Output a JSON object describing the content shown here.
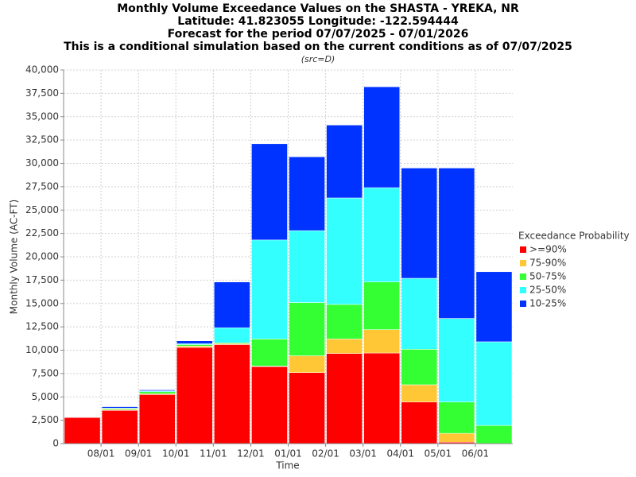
{
  "chart_data": {
    "type": "stacked_bar",
    "title": [
      "Monthly Volume Exceedance Values on the SHASTA - YREKA, NR",
      "Latitude: 41.823055 Longitude: -122.594444",
      "Forecast for the period 07/07/2025 - 07/01/2026",
      "This is a conditional simulation based on the current conditions as of 07/07/2025"
    ],
    "subtitle": "(src=D)",
    "x_label": "Time",
    "y_label": "Monthly Volume (AC-FT)",
    "xticks": [
      "08/01",
      "09/01",
      "10/01",
      "11/01",
      "12/01",
      "01/01",
      "02/01",
      "03/01",
      "04/01",
      "05/01",
      "06/01"
    ],
    "categories": [
      null,
      null,
      null,
      null,
      null,
      null,
      null,
      null,
      null,
      null,
      null,
      null
    ],
    "legend_title": "Exceedance Probability",
    "legend": "right",
    "grid": true,
    "series": [
      {
        "name": ">=90%",
        "color": "#ff0000",
        "values": [
          2800,
          3550,
          5250,
          10300,
          10600,
          8250,
          7600,
          9650,
          9700,
          4450,
          150,
          0
        ]
      },
      {
        "name": "75-90%",
        "color": "#ffc735",
        "values": [
          25,
          100,
          100,
          150,
          100,
          50,
          1800,
          1550,
          2500,
          1850,
          950,
          0
        ]
      },
      {
        "name": "50-75%",
        "color": "#33ff33",
        "values": [
          25,
          100,
          200,
          150,
          100,
          2900,
          5700,
          3700,
          5100,
          3800,
          3350,
          1950
        ]
      },
      {
        "name": "25-50%",
        "color": "#33ffff",
        "values": [
          25,
          50,
          100,
          100,
          1600,
          10600,
          7700,
          11400,
          10100,
          7600,
          8950,
          8950
        ]
      },
      {
        "name": "10-25%",
        "color": "#0033ff",
        "values": [
          25,
          150,
          100,
          300,
          4900,
          10300,
          7900,
          7800,
          10800,
          11800,
          16100,
          7500
        ]
      }
    ],
    "ylim": [
      0,
      40000
    ],
    "yticks": [
      0,
      {
        "value": 2500,
        "label": "2,500"
      },
      {
        "value": 5000,
        "label": "5,000"
      },
      {
        "value": 7500,
        "label": "7,500"
      },
      {
        "value": 10000,
        "label": "10,000"
      },
      {
        "value": 12500,
        "label": "12,500"
      },
      {
        "value": 15000,
        "label": "15,000"
      },
      {
        "value": 17500,
        "label": "17,500"
      },
      {
        "value": 20000,
        "label": "20,000"
      },
      {
        "value": 22500,
        "label": "22,500"
      },
      {
        "value": 25000,
        "label": "25,000"
      },
      {
        "value": 27500,
        "label": "27,500"
      },
      {
        "value": 30000,
        "label": "30,000"
      },
      {
        "value": 32500,
        "label": "32,500"
      },
      {
        "value": 35000,
        "label": "35,000"
      },
      {
        "value": 37500,
        "label": "37,500"
      },
      {
        "value": 40000,
        "label": "40,000"
      }
    ]
  }
}
